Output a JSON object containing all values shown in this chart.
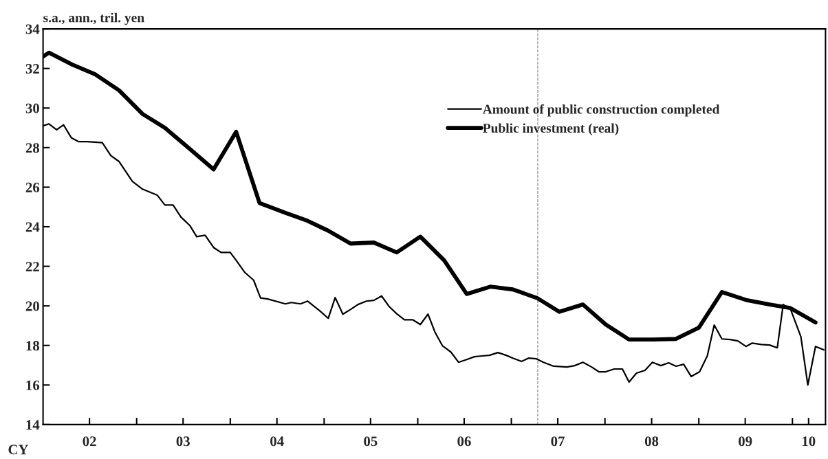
{
  "chart_data": {
    "type": "line",
    "ylabel": "s.a., ann., tril. yen",
    "annotations": [
      "CY"
    ],
    "xlim": [
      "2002-01-01",
      "2010-05-10"
    ],
    "xticks": [
      {
        "value": "2003-01-01",
        "label": null
      },
      {
        "value": "2004-01-01",
        "label": null
      },
      {
        "value": "2005-01-01",
        "label": null
      },
      {
        "value": "2006-01-01",
        "label": null
      },
      {
        "value": "2007-01-01",
        "label": null
      },
      {
        "value": "2008-01-01",
        "label": null
      },
      {
        "value": "2009-01-01",
        "label": null
      },
      {
        "value": "2010-01-01",
        "label": null
      },
      {
        "value": "2002-07-01",
        "label": "02"
      },
      {
        "value": "2003-07-01",
        "label": "03"
      },
      {
        "value": "2004-07-01",
        "label": "04"
      },
      {
        "value": "2005-07-01",
        "label": "05"
      },
      {
        "value": "2006-07-01",
        "label": "06"
      },
      {
        "value": "2007-07-01",
        "label": "07"
      },
      {
        "value": "2008-07-01",
        "label": "08"
      },
      {
        "value": "2009-07-01",
        "label": "09"
      },
      {
        "value": "2010-03-05",
        "label": "10"
      }
    ],
    "ylim": [
      14,
      34
    ],
    "yticks": [
      14,
      16,
      18,
      20,
      22,
      24,
      26,
      28,
      30,
      32,
      34
    ],
    "grid": false,
    "legend": "top right",
    "ref_lines": [
      {
        "axis": "x",
        "value": "2007-04-14",
        "color": "#808080",
        "line_style": "dashed"
      }
    ],
    "series": [
      {
        "name": "Amount of public construction completed",
        "color": "#000000",
        "x": [
          "2002-01-01",
          "2002-01-24",
          "2002-02-23",
          "2002-03-22",
          "2002-04-21",
          "2002-05-20",
          "2002-06-22",
          "2002-08-20",
          "2002-09-22",
          "2002-10-24",
          "2002-12-15",
          "2003-01-24",
          "2003-03-22",
          "2003-04-21",
          "2003-05-23",
          "2003-06-22",
          "2003-07-28",
          "2003-08-23",
          "2003-09-25",
          "2003-10-28",
          "2003-11-26",
          "2004-01-01",
          "2004-01-24",
          "2004-02-26",
          "2004-04-01",
          "2004-04-28",
          "2004-05-26",
          "2004-08-03",
          "2004-08-26",
          "2004-10-01",
          "2004-10-28",
          "2004-12-15",
          "2005-01-17",
          "2005-02-13",
          "2005-03-15",
          "2005-04-14",
          "2005-05-13",
          "2005-06-15",
          "2005-07-14",
          "2005-08-13",
          "2005-09-12",
          "2005-10-11",
          "2005-11-10",
          "2005-12-12",
          "2006-01-11",
          "2006-02-10",
          "2006-03-09",
          "2006-04-07",
          "2006-05-10",
          "2006-06-09",
          "2006-07-11",
          "2006-08-10",
          "2006-09-09",
          "2006-10-07",
          "2006-11-10",
          "2006-12-12",
          "2007-01-07",
          "2007-02-10",
          "2007-03-09",
          "2007-04-07",
          "2007-05-06",
          "2007-06-15",
          "2007-08-06",
          "2007-09-05",
          "2007-10-07",
          "2007-11-10",
          "2007-12-08",
          "2008-01-04",
          "2008-02-06",
          "2008-03-09",
          "2008-04-04",
          "2008-05-03",
          "2008-06-05",
          "2008-07-04",
          "2008-08-06",
          "2008-09-05",
          "2008-10-04",
          "2008-11-03",
          "2008-12-02",
          "2009-01-04",
          "2009-02-03",
          "2009-03-02",
          "2009-04-01",
          "2009-05-03",
          "2009-06-02",
          "2009-07-04",
          "2009-07-28",
          "2009-09-02",
          "2009-10-04",
          "2009-11-03",
          "2009-11-26",
          "2009-12-25",
          "2010-02-03",
          "2010-03-02",
          "2010-04-01",
          "2010-05-03"
        ],
        "values": [
          29.1,
          29.2,
          28.9,
          29.15,
          28.5,
          28.3,
          28.3,
          28.25,
          27.6,
          27.3,
          26.3,
          25.9,
          25.6,
          25.1,
          25.1,
          24.5,
          24.05,
          23.5,
          23.57,
          22.95,
          22.7,
          22.7,
          22.3,
          21.7,
          21.3,
          20.4,
          20.35,
          20.1,
          20.17,
          20.1,
          20.24,
          19.75,
          19.37,
          20.42,
          19.58,
          19.82,
          20.07,
          20.24,
          20.28,
          20.5,
          19.96,
          19.6,
          19.3,
          19.3,
          19.06,
          19.58,
          18.68,
          17.99,
          17.67,
          17.15,
          17.29,
          17.43,
          17.47,
          17.5,
          17.64,
          17.5,
          17.36,
          17.19,
          17.36,
          17.33,
          17.15,
          16.95,
          16.91,
          16.98,
          17.15,
          16.91,
          16.67,
          16.67,
          16.81,
          16.81,
          16.15,
          16.6,
          16.74,
          17.15,
          16.98,
          17.12,
          16.95,
          17.05,
          16.43,
          16.67,
          17.47,
          19.03,
          18.33,
          18.3,
          18.23,
          17.95,
          18.12,
          18.05,
          18.02,
          17.88,
          20.07,
          19.82,
          18.44,
          16.0,
          17.95,
          17.78
        ]
      },
      {
        "name": "Public investment (real)",
        "color": "#000000",
        "x": [
          "2002-01-01",
          "2002-01-24",
          "2002-04-24",
          "2002-07-24",
          "2002-10-24",
          "2003-01-24",
          "2003-04-21",
          "2003-07-21",
          "2003-10-28",
          "2004-01-24",
          "2004-04-24",
          "2004-08-03",
          "2004-10-28",
          "2005-01-17",
          "2005-04-14",
          "2005-07-14",
          "2005-10-11",
          "2006-01-11",
          "2006-04-14",
          "2006-07-11",
          "2006-10-11",
          "2007-01-07",
          "2007-04-11",
          "2007-07-07",
          "2007-10-07",
          "2008-01-04",
          "2008-04-04",
          "2008-07-07",
          "2008-10-04",
          "2009-01-01",
          "2009-04-01",
          "2009-07-04",
          "2009-10-04",
          "2009-12-22",
          "2010-04-01"
        ],
        "values": [
          32.6,
          32.8,
          32.2,
          31.7,
          30.9,
          29.7,
          29.0,
          28.0,
          26.9,
          28.8,
          25.2,
          24.7,
          24.3,
          23.8,
          23.15,
          23.2,
          22.7,
          23.5,
          22.3,
          20.6,
          20.97,
          20.83,
          20.4,
          19.7,
          20.07,
          19.06,
          18.3,
          18.3,
          18.33,
          18.9,
          20.7,
          20.3,
          20.07,
          19.9,
          19.16
        ]
      }
    ]
  }
}
